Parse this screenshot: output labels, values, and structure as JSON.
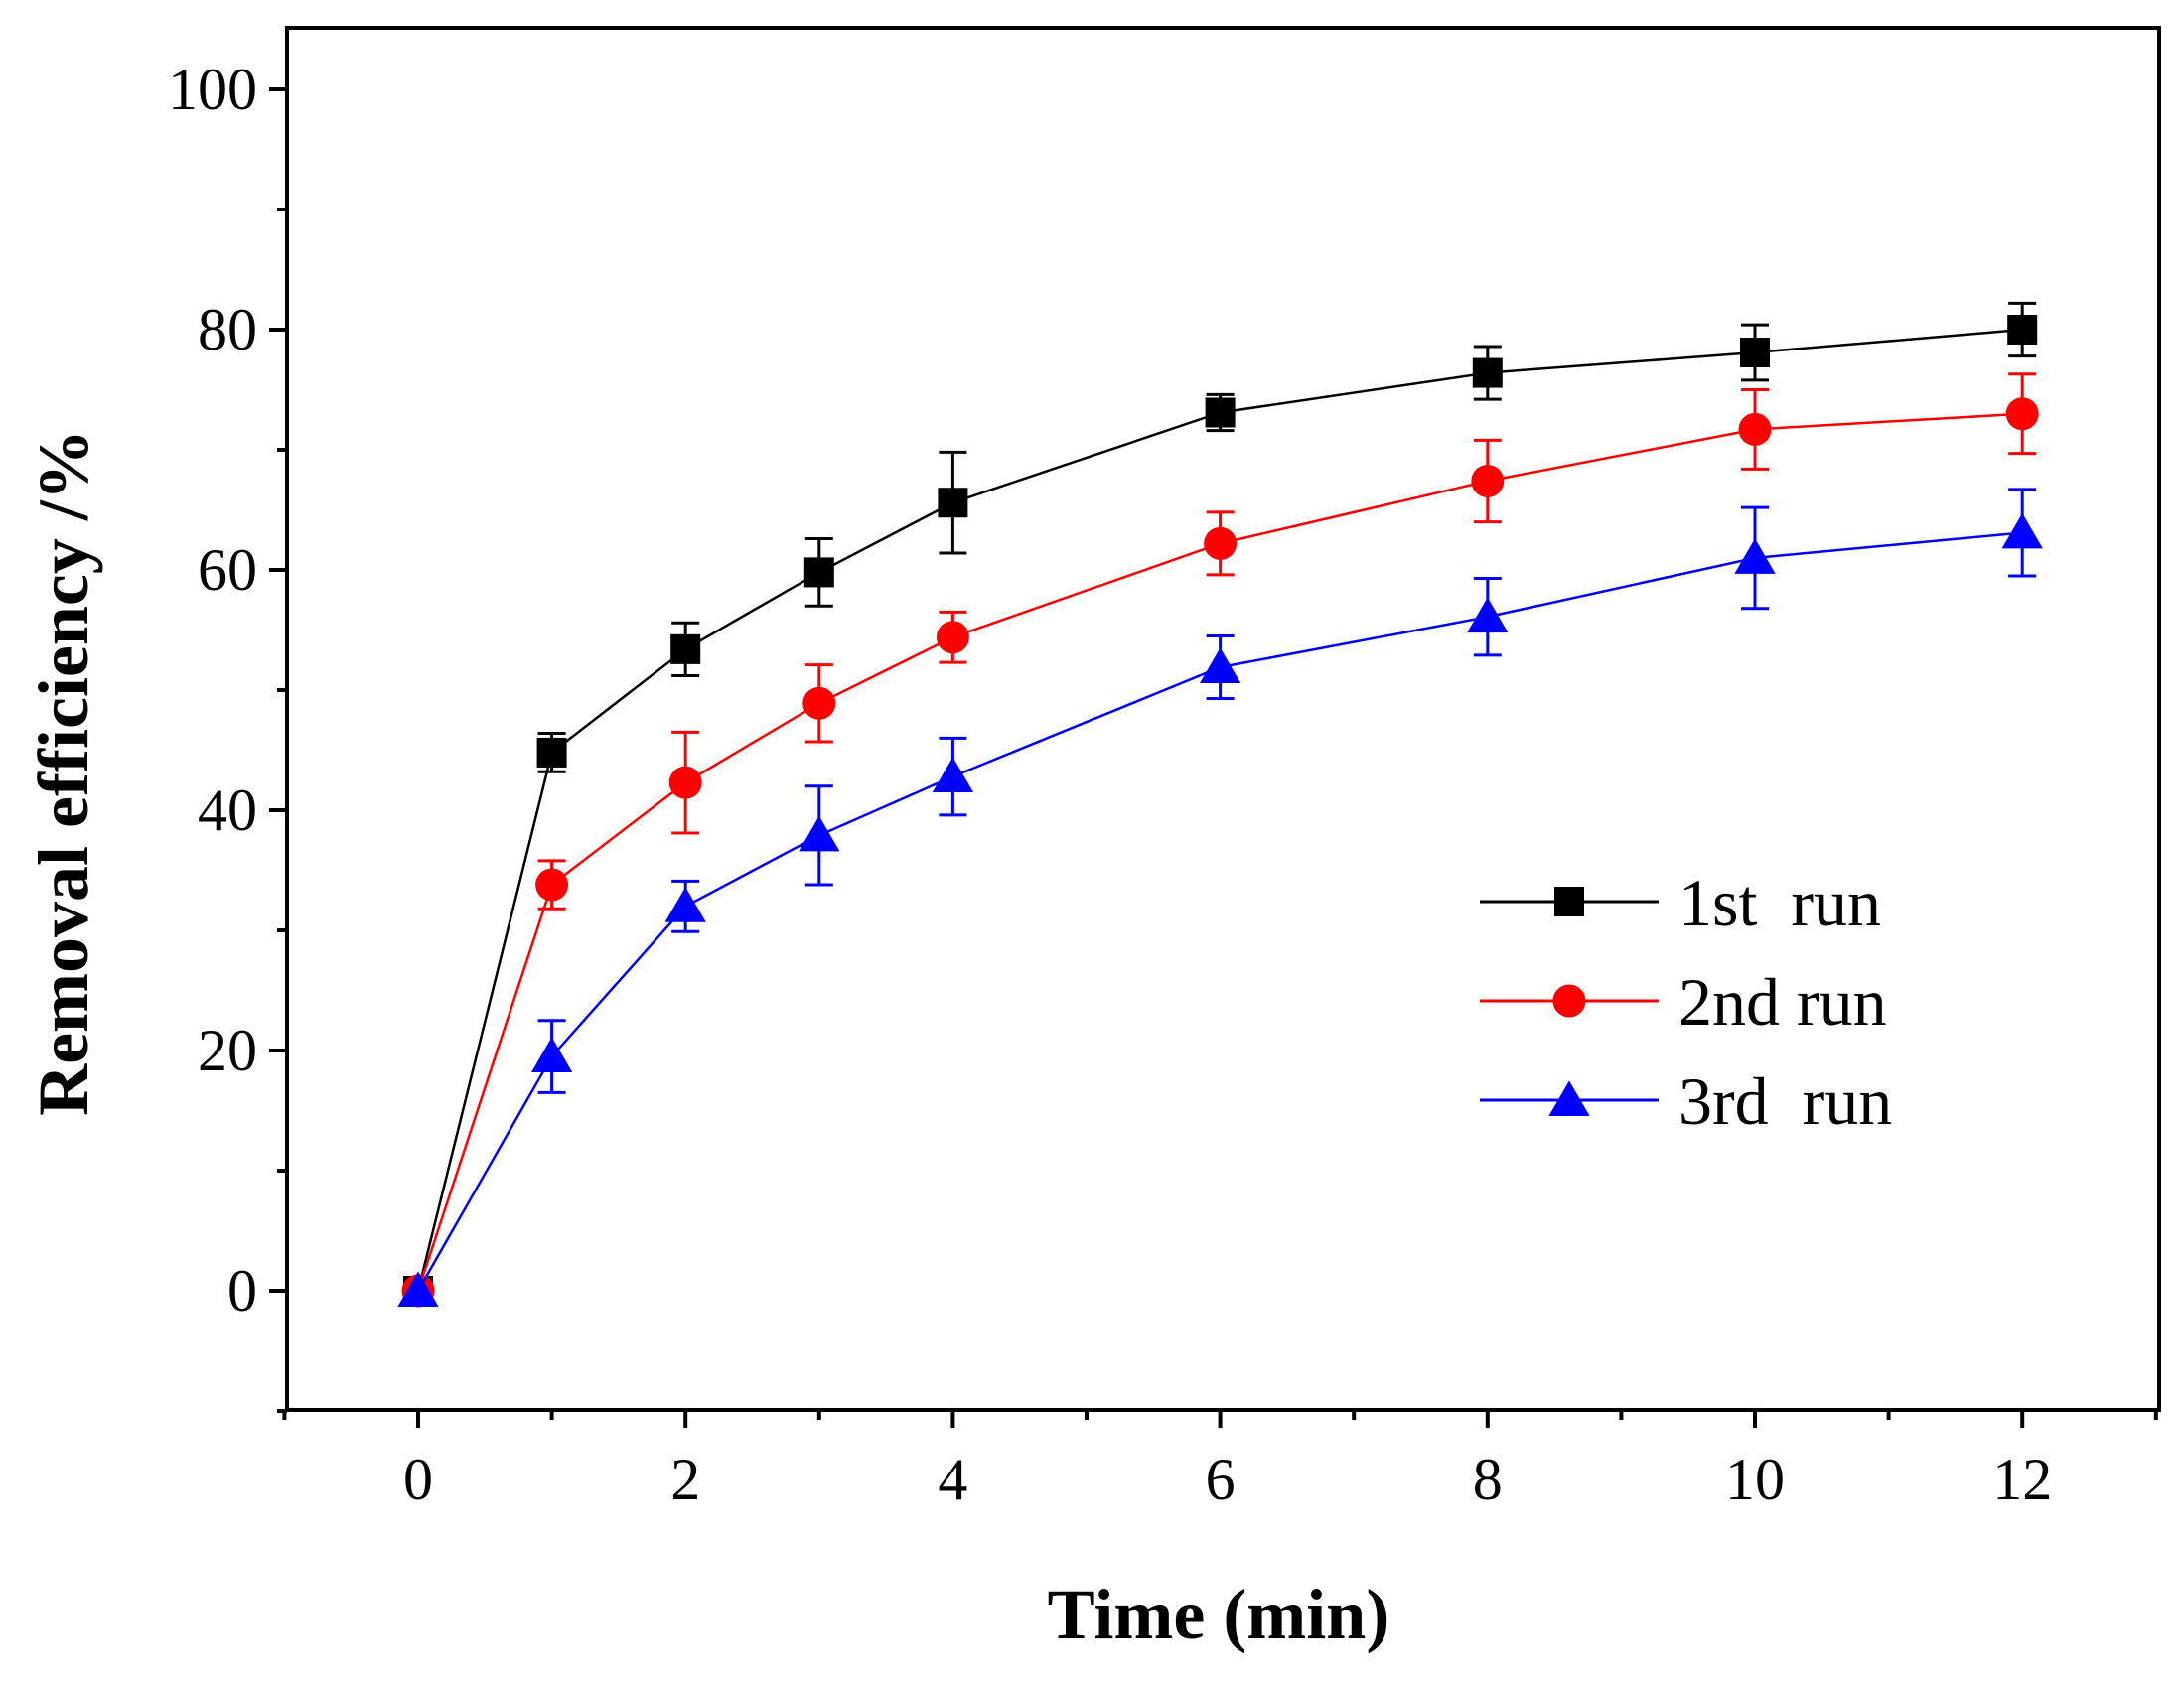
{
  "chart_data": {
    "type": "line",
    "title": "",
    "xlabel": "Time (min)",
    "ylabel": "Removal efficiency /%",
    "xlim": [
      -1,
      13
    ],
    "ylim": [
      -10,
      105
    ],
    "xticks": [
      0,
      2,
      4,
      6,
      8,
      10,
      12
    ],
    "xminor_ticks": [
      1,
      3,
      5,
      7,
      9,
      11,
      13
    ],
    "yticks": [
      0,
      20,
      40,
      60,
      80,
      100
    ],
    "yminor_ticks": [
      -10,
      10,
      30,
      50,
      70,
      90
    ],
    "grid": false,
    "legend_position": "center-right",
    "x": [
      0,
      1,
      2,
      3,
      4,
      6,
      8,
      10,
      12
    ],
    "series": [
      {
        "name": "1st  run",
        "color": "#000000",
        "marker": "square",
        "values": [
          0,
          44.8,
          53.4,
          59.8,
          65.6,
          73.1,
          76.4,
          78.1,
          80.0
        ],
        "errors": [
          0,
          1.6,
          2.2,
          2.8,
          4.2,
          1.5,
          2.2,
          2.3,
          2.2
        ]
      },
      {
        "name": "2nd run",
        "color": "#ff0000",
        "marker": "circle",
        "values": [
          0,
          33.8,
          42.3,
          48.9,
          54.4,
          62.2,
          67.4,
          71.7,
          73.0
        ],
        "errors": [
          0,
          2.0,
          4.2,
          3.2,
          2.1,
          2.6,
          3.4,
          3.3,
          3.3
        ]
      },
      {
        "name": "3rd  run",
        "color": "#0000ff",
        "marker": "triangle",
        "values": [
          0,
          19.5,
          32.0,
          37.9,
          42.8,
          51.9,
          56.1,
          61.0,
          63.1
        ],
        "errors": [
          0,
          3.0,
          2.1,
          4.1,
          3.2,
          2.6,
          3.2,
          4.2,
          3.6
        ]
      }
    ]
  }
}
